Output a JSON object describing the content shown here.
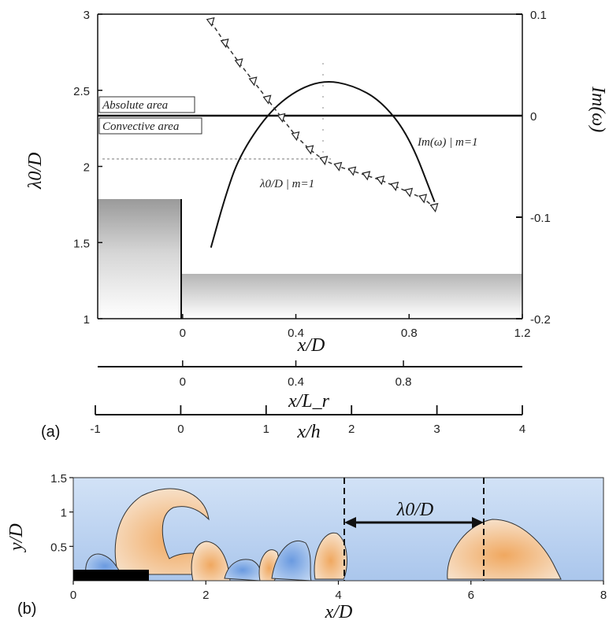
{
  "chart_data": [
    {
      "panel_label": "(a)",
      "type": "line",
      "xlabel": "x/D",
      "ylabel": "λ0/D",
      "ylabel_right": "Im(ω)",
      "xlim": [
        -0.3,
        1.2
      ],
      "ylim": [
        1,
        3
      ],
      "y2lim": [
        -0.2,
        0.1
      ],
      "x_ticks": [
        "0",
        "0.4",
        "0.8",
        "1.2"
      ],
      "y_ticks": [
        "1",
        "1.5",
        "2",
        "2.5",
        "3"
      ],
      "y2_ticks": [
        "-0.2",
        "-0.1",
        "0",
        "0.1"
      ],
      "secondary_axes": [
        {
          "label": "x/L_r",
          "ticks": [
            "0",
            "0.4",
            "0.8"
          ]
        },
        {
          "label": "x/h",
          "ticks": [
            "-1",
            "0",
            "1",
            "2",
            "3",
            "4"
          ]
        }
      ],
      "annotations": [
        "Absolute area",
        "Convective area",
        "Im(ω) | m=1",
        "λ0/D | m=1"
      ],
      "series": [
        {
          "name": "λ0/D | m=1",
          "axis": "left",
          "marker": "triangle",
          "x": [
            0.1,
            0.15,
            0.2,
            0.25,
            0.3,
            0.35,
            0.4,
            0.45,
            0.5,
            0.55,
            0.6,
            0.65,
            0.7,
            0.75,
            0.8,
            0.85,
            0.89
          ],
          "y": [
            2.95,
            2.81,
            2.68,
            2.56,
            2.44,
            2.32,
            2.2,
            2.11,
            2.04,
            2.0,
            1.97,
            1.94,
            1.91,
            1.87,
            1.83,
            1.79,
            1.73
          ]
        },
        {
          "name": "Im(ω) | m=1",
          "axis": "right",
          "x": [
            0.1,
            0.15,
            0.2,
            0.3,
            0.4,
            0.5,
            0.6,
            0.7,
            0.8,
            0.89
          ],
          "y": [
            -0.13,
            -0.08,
            -0.04,
            0.002,
            0.025,
            0.035,
            0.03,
            0.015,
            -0.02,
            -0.085
          ]
        }
      ]
    },
    {
      "panel_label": "(b)",
      "type": "heatmap",
      "xlabel": "x/D",
      "ylabel": "y/D",
      "xlim": [
        0,
        8
      ],
      "ylim": [
        0,
        1.5
      ],
      "x_ticks": [
        "0",
        "2",
        "4",
        "6",
        "8"
      ],
      "y_ticks": [
        "0.5",
        "1",
        "1.5"
      ],
      "annotations": [
        "λ0/D"
      ],
      "wavelength_markers": {
        "x": [
          4.1,
          6.2
        ],
        "y": 0.85
      }
    }
  ]
}
